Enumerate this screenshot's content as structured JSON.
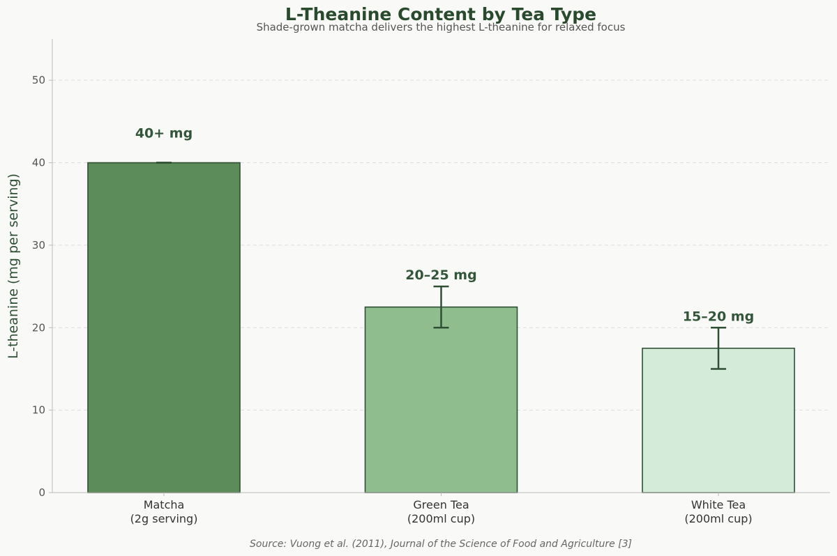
{
  "chart_data": {
    "type": "bar",
    "title": "L-Theanine Content by Tea Type",
    "subtitle": "Shade-grown matcha delivers the highest L-theanine for relaxed focus",
    "xlabel": "",
    "ylabel": "L-theanine (mg per serving)",
    "ylim": [
      0,
      55
    ],
    "yticks": [
      "0",
      "10",
      "20",
      "30",
      "40",
      "50"
    ],
    "grid": true,
    "categories": [
      [
        "Matcha",
        "(2g serving)"
      ],
      [
        "Green Tea",
        "(200ml cup)"
      ],
      [
        "White Tea",
        "(200ml cup)"
      ]
    ],
    "values": [
      40,
      22.5,
      17.5
    ],
    "error_ranges": [
      [
        40,
        40
      ],
      [
        20,
        25
      ],
      [
        15,
        20
      ]
    ],
    "data_labels": [
      "40+ mg",
      "20–25 mg",
      "15–20 mg"
    ],
    "colors": [
      "#5c8c5a",
      "#8fbd8e",
      "#d4ebd9"
    ],
    "edge_color": "#2f4f35",
    "source": "Source: Vuong et al. (2011), Journal of the Science of Food and Agriculture [3]"
  }
}
